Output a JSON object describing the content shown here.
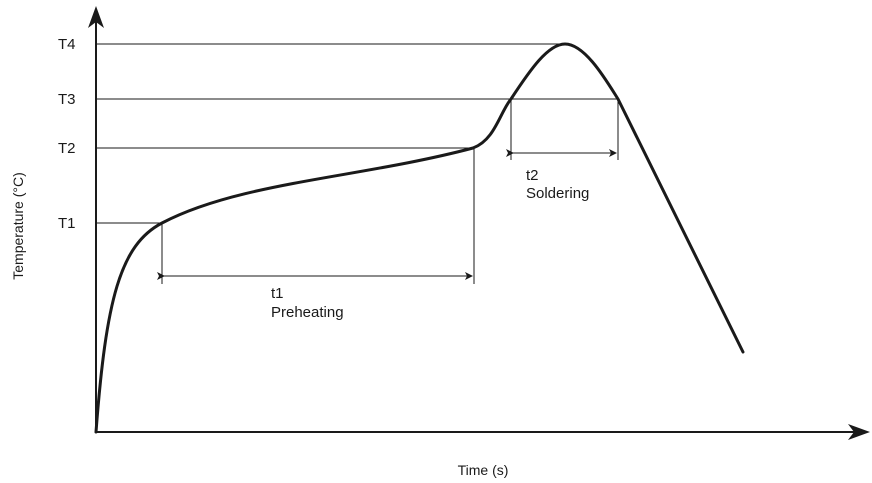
{
  "axes": {
    "y_title": "Temperature (°C)",
    "x_title": "Time (s)"
  },
  "levels": {
    "t4": "T4",
    "t3": "T3",
    "t2": "T2",
    "t1": "T1"
  },
  "intervals": {
    "preheating": {
      "symbol": "t1",
      "name": "Preheating"
    },
    "soldering": {
      "symbol": "t2",
      "name": "Soldering"
    }
  }
}
